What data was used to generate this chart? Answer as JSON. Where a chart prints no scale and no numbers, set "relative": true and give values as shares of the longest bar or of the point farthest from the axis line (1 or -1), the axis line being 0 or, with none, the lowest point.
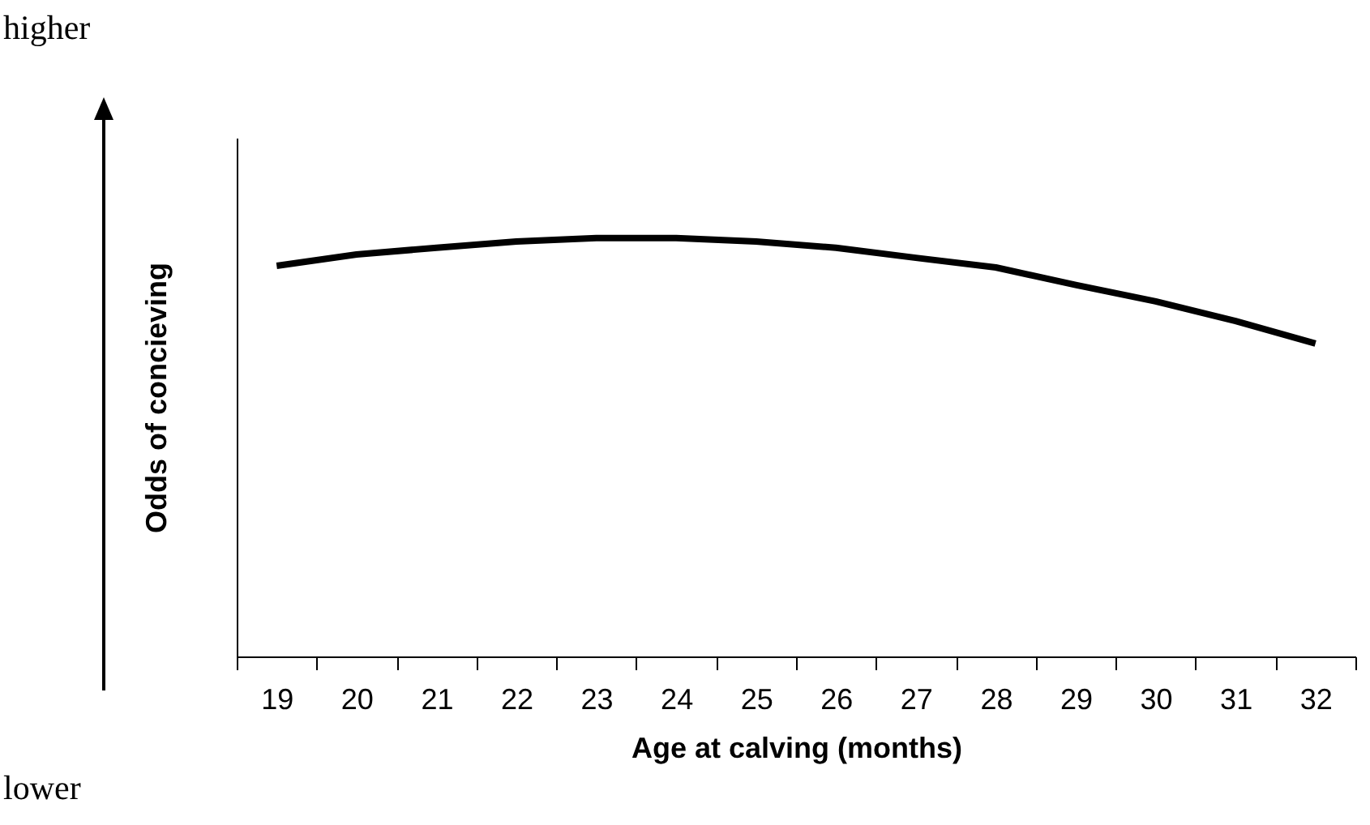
{
  "chart_data": {
    "type": "line",
    "relative": true,
    "xlabel": "Age at calving (months)",
    "ylabel": "Odds of concieving",
    "annotations": [
      "higher",
      "lower"
    ],
    "categories": [
      "19",
      "20",
      "21",
      "22",
      "23",
      "24",
      "25",
      "26",
      "27",
      "28",
      "29",
      "30",
      "31",
      "32"
    ],
    "series": [
      {
        "color": "#000000",
        "values": [
          0.934,
          0.961,
          0.977,
          0.992,
          1,
          1,
          0.992,
          0.977,
          0.953,
          0.93,
          0.888,
          0.849,
          0.802,
          0.748
        ]
      }
    ],
    "grid": false,
    "legend": false,
    "marker": "none",
    "line_style": "solid"
  }
}
